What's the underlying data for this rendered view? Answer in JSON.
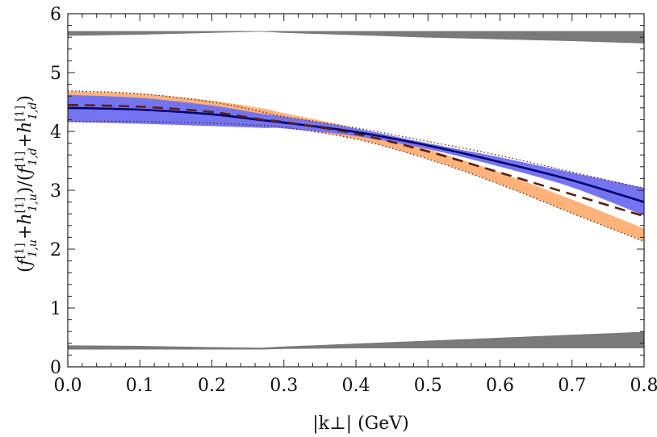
{
  "chart_data": {
    "type": "line",
    "title": "",
    "xlabel": "|k⊥|  (GeV)",
    "ylabel": "(f[1]1,u + h[1]1,u) / (f[1]1,d + h[1]1,d)",
    "ylabel_parts": {
      "open_paren": "(",
      "f": "f",
      "f_sup": "[1]",
      "f_sub_u": "1,u",
      "plus": "+",
      "h": "h",
      "h_sup": "[1]",
      "h_sub_u": "1,u",
      "mid": ")/(",
      "f_sub_d": "1,d",
      "h_sub_d": "1,d",
      "close_paren": ")"
    },
    "xlim": [
      0.0,
      0.8
    ],
    "ylim": [
      0,
      6
    ],
    "xticks": [
      "0.0",
      "0.1",
      "0.2",
      "0.3",
      "0.4",
      "0.5",
      "0.6",
      "0.7",
      "0.8"
    ],
    "yticks": [
      "0",
      "1",
      "2",
      "3",
      "4",
      "5",
      "6"
    ],
    "grid": false,
    "x": [
      0.0,
      0.1,
      0.2,
      0.27,
      0.3,
      0.4,
      0.5,
      0.6,
      0.7,
      0.8
    ],
    "series": [
      {
        "name": "upper gray band",
        "kind": "band",
        "color": "#7a7a7a",
        "lower": [
          5.63,
          5.65,
          5.68,
          5.7,
          5.68,
          5.64,
          5.6,
          5.57,
          5.54,
          5.5
        ],
        "upper": [
          5.7,
          5.7,
          5.7,
          5.7,
          5.7,
          5.7,
          5.7,
          5.7,
          5.7,
          5.7
        ]
      },
      {
        "name": "lower gray band",
        "kind": "band",
        "color": "#7a7a7a",
        "lower": [
          0.3,
          0.3,
          0.3,
          0.3,
          0.31,
          0.32,
          0.32,
          0.32,
          0.32,
          0.32
        ],
        "upper": [
          0.36,
          0.35,
          0.33,
          0.32,
          0.34,
          0.39,
          0.44,
          0.49,
          0.54,
          0.59
        ]
      },
      {
        "name": "orange band",
        "kind": "band",
        "color": "#ffb37a",
        "lower": [
          4.17,
          4.17,
          4.14,
          4.1,
          4.07,
          3.87,
          3.53,
          3.1,
          2.61,
          2.13
        ],
        "upper": [
          4.68,
          4.64,
          4.52,
          4.39,
          4.31,
          4.05,
          3.7,
          3.3,
          2.84,
          2.35
        ]
      },
      {
        "name": "blue band",
        "kind": "band",
        "color": "#7474f0",
        "lower": [
          4.16,
          4.13,
          4.09,
          4.06,
          4.05,
          3.92,
          3.7,
          3.4,
          3.05,
          2.57
        ],
        "upper": [
          4.62,
          4.57,
          4.44,
          4.3,
          4.25,
          4.05,
          3.8,
          3.56,
          3.3,
          3.04
        ]
      },
      {
        "name": "solid central line",
        "kind": "line",
        "style": "solid",
        "color": "#00006e",
        "values": [
          4.4,
          4.37,
          4.29,
          4.19,
          4.15,
          3.99,
          3.76,
          3.48,
          3.17,
          2.8
        ]
      },
      {
        "name": "dashed central line",
        "kind": "line",
        "style": "dashed",
        "color": "#5a1f10",
        "values": [
          4.45,
          4.42,
          4.33,
          4.2,
          4.16,
          3.96,
          3.66,
          3.3,
          2.93,
          2.56
        ]
      },
      {
        "name": "dotted upper edge",
        "kind": "line",
        "style": "dotted",
        "color": "#6a1a10",
        "values": [
          4.69,
          4.64,
          4.5,
          4.33,
          4.25,
          4.06,
          3.83,
          3.59,
          3.31,
          3.03
        ]
      },
      {
        "name": "dotted lower edge",
        "kind": "line",
        "style": "dotted",
        "color": "#6a1a10",
        "values": [
          4.17,
          4.17,
          4.14,
          4.1,
          4.07,
          3.87,
          3.53,
          3.1,
          2.61,
          2.13
        ]
      }
    ]
  }
}
